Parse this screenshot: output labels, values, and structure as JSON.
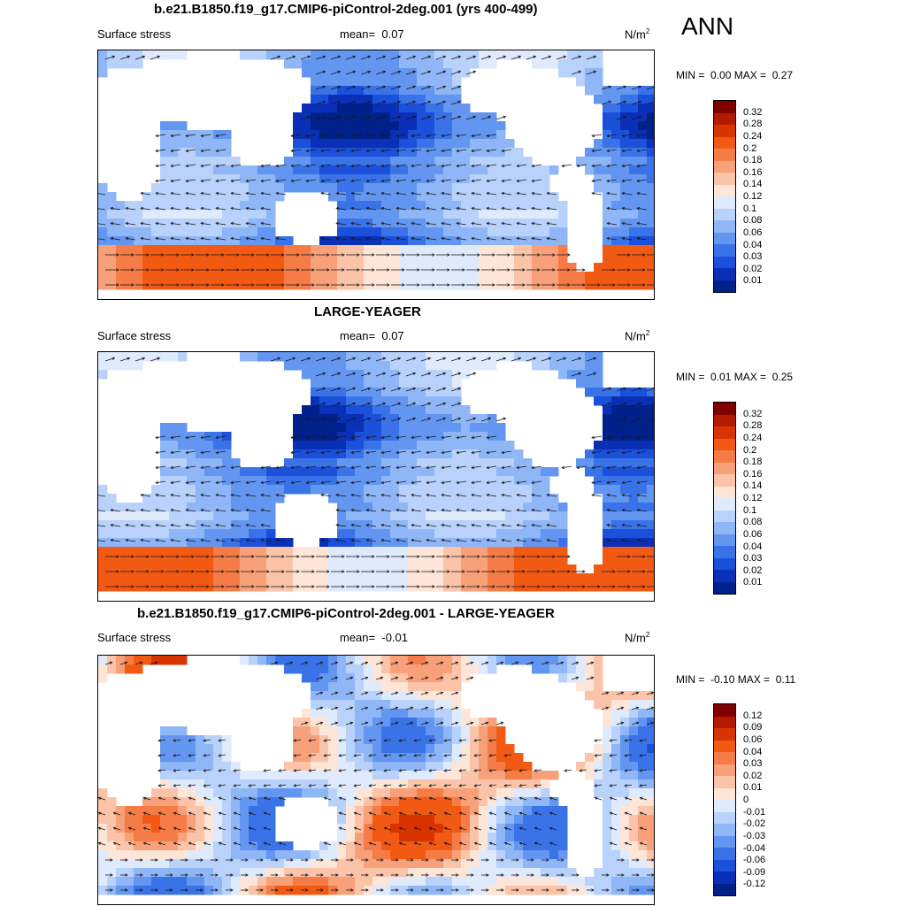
{
  "season": "ANN",
  "panels": [
    {
      "title": "b.e21.B1850.f19_g17.CMIP6-piControl-2deg.001 (yrs 400-499)",
      "left_label": "Surface stress",
      "mean_label": "mean=",
      "mean_value": "0.07",
      "units": "N/m",
      "units_sup": "2",
      "min_label": "MIN =",
      "min_value": "0.00",
      "max_label": "MAX =",
      "max_value": "0.27",
      "colorbar": {
        "labels": [
          "0.32",
          "0.28",
          "0.24",
          "0.2",
          "0.18",
          "0.16",
          "0.14",
          "0.12",
          "0.1",
          "0.08",
          "0.06",
          "0.04",
          "0.03",
          "0.02",
          "0.01"
        ],
        "colors": [
          "#800000",
          "#b31b00",
          "#d93300",
          "#f25a14",
          "#f57c46",
          "#f8a07a",
          "#fbc4a8",
          "#fde6d8",
          "#dfeafc",
          "#b8d2fb",
          "#8fb6f6",
          "#6396f0",
          "#3a73e8",
          "#1a50da",
          "#0a30b8",
          "#00208a"
        ]
      }
    },
    {
      "title": "LARGE-YEAGER",
      "left_label": "Surface stress",
      "mean_label": "mean=",
      "mean_value": "0.07",
      "units": "N/m",
      "units_sup": "2",
      "min_label": "MIN =",
      "min_value": "0.01",
      "max_label": "MAX =",
      "max_value": "0.25",
      "colorbar": {
        "labels": [
          "0.32",
          "0.28",
          "0.24",
          "0.2",
          "0.18",
          "0.16",
          "0.14",
          "0.12",
          "0.1",
          "0.08",
          "0.06",
          "0.04",
          "0.03",
          "0.02",
          "0.01"
        ],
        "colors": [
          "#800000",
          "#b31b00",
          "#d93300",
          "#f25a14",
          "#f57c46",
          "#f8a07a",
          "#fbc4a8",
          "#fde6d8",
          "#dfeafc",
          "#b8d2fb",
          "#8fb6f6",
          "#6396f0",
          "#3a73e8",
          "#1a50da",
          "#0a30b8",
          "#00208a"
        ]
      }
    },
    {
      "title": "b.e21.B1850.f19_g17.CMIP6-piControl-2deg.001 - LARGE-YEAGER",
      "left_label": "Surface stress",
      "mean_label": "mean=",
      "mean_value": "-0.01",
      "units": "N/m",
      "units_sup": "2",
      "min_label": "MIN =",
      "min_value": "-0.10",
      "max_label": "MAX =",
      "max_value": "0.11",
      "colorbar": {
        "labels": [
          "0.12",
          "0.09",
          "0.06",
          "0.04",
          "0.03",
          "0.02",
          "0.01",
          "0",
          "-0.01",
          "-0.02",
          "-0.03",
          "-0.04",
          "-0.06",
          "-0.09",
          "-0.12"
        ],
        "colors": [
          "#800000",
          "#b31b00",
          "#d93300",
          "#f25a14",
          "#f57c46",
          "#f8a07a",
          "#fbc4a8",
          "#fde6d8",
          "#dfeafc",
          "#b8d2fb",
          "#8fb6f6",
          "#6396f0",
          "#3a73e8",
          "#1a50da",
          "#0a30b8",
          "#00208a"
        ]
      }
    }
  ]
}
